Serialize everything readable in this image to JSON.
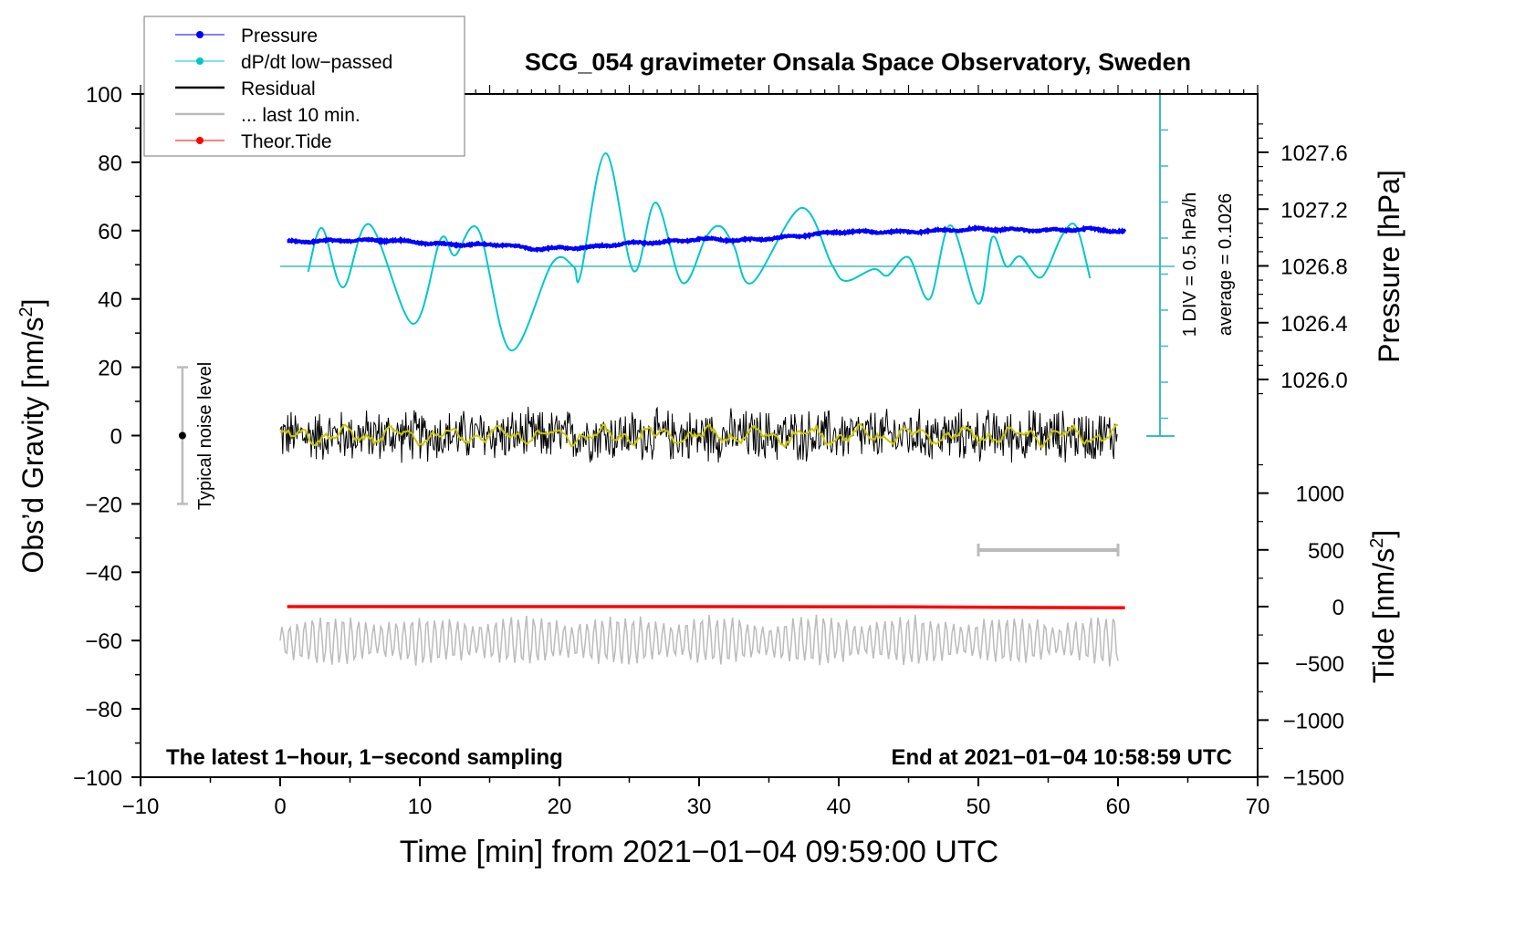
{
  "chart_data": {
    "type": "line",
    "title": "SCG_054 gravimeter Onsala Space Observatory, Sweden",
    "xlabel": "Time [min] from 2021−01−04 09:59:00 UTC",
    "ylabel_left": "Obs’d Gravity [nm/s",
    "ylabel_left_sup": "2",
    "ylabel_left_end": "]",
    "ylabel_right_pressure": "Pressure [hPa]",
    "ylabel_right_tide": "Tide [nm/s",
    "ylabel_right_tide_sup": "2",
    "ylabel_right_tide_end": "]",
    "xlim": [
      -10,
      70
    ],
    "ylim_left": [
      -100,
      100
    ],
    "x_ticks": [
      "−10",
      "0",
      "10",
      "20",
      "30",
      "40",
      "50",
      "60",
      "70"
    ],
    "x_tick_values": [
      -10,
      0,
      10,
      20,
      30,
      40,
      50,
      60,
      70
    ],
    "y_ticks_left": [
      "100",
      "80",
      "60",
      "40",
      "20",
      "0",
      "−20",
      "−40",
      "−60",
      "−80",
      "−100"
    ],
    "y_tick_values_left": [
      100,
      80,
      60,
      40,
      20,
      0,
      -20,
      -40,
      -60,
      -80,
      -100
    ],
    "pressure_ticks": [
      "1027.6",
      "1027.2",
      "1026.8",
      "1026.4",
      "1026.0"
    ],
    "pressure_tick_values": [
      1027.6,
      1027.2,
      1026.8,
      1026.4,
      1026.0
    ],
    "tide_ticks": [
      "1000",
      "500",
      "0",
      "−500",
      "−1000",
      "−1500"
    ],
    "tide_tick_values": [
      1000,
      500,
      0,
      -500,
      -1000,
      -1500
    ],
    "legend": {
      "placement": "top-left",
      "entries": [
        {
          "label": "Pressure",
          "color": "#0000ff"
        },
        {
          "label": "dP/dt low−passed",
          "color": "#00c8c8"
        },
        {
          "label": "Residual",
          "color": "#000000"
        },
        {
          "label": "... last 10 min.",
          "color": "#bbbbbb"
        },
        {
          "label": "Theor.Tide",
          "color": "#ff0000"
        }
      ]
    },
    "annotations": {
      "bottom_left": "The latest 1−hour, 1−second sampling",
      "bottom_right": "End at 2021−01−04 10:58:59 UTC",
      "div_label": "1 DIV = 0.5 hPa/h",
      "average_label": "average = 0.1026",
      "noise_label": "Typical noise level"
    },
    "series": [
      {
        "name": "Pressure",
        "axis": "pressure_hPa",
        "x": [
          0.5,
          5,
          8,
          12,
          16,
          18,
          22,
          25,
          28,
          30,
          33,
          36,
          40,
          45,
          50,
          55,
          58,
          60.5
        ],
        "y": [
          1026.97,
          1026.98,
          1026.98,
          1026.95,
          1026.95,
          1026.92,
          1026.93,
          1026.96,
          1026.97,
          1026.99,
          1026.98,
          1027.0,
          1027.04,
          1027.04,
          1027.06,
          1027.05,
          1027.06,
          1027.04
        ]
      },
      {
        "name": "dP/dt low-passed",
        "axis": "hPa/h (1 DIV = 0.5), zero at left 50",
        "x": [
          2,
          3,
          4.5,
          6.4,
          9.5,
          11.5,
          12.5,
          14.2,
          16.5,
          19.5,
          21,
          21.5,
          23.3,
          25.3,
          26.9,
          28.8,
          30.5,
          31.5,
          32.5,
          33.8,
          37.3,
          39.5,
          40.5,
          42.5,
          43.5,
          45,
          46.5,
          48,
          50,
          51,
          52,
          53,
          54.5,
          56,
          57,
          58
        ],
        "y": [
          -0.075,
          0.525,
          -0.288,
          0.575,
          -0.788,
          0.375,
          0.15,
          0.5,
          -1.15,
          0.05,
          0,
          -0.125,
          1.55,
          -0.063,
          0.875,
          -0.225,
          0.4,
          0.55,
          0.275,
          -0.225,
          0.8,
          0.025,
          -0.2,
          -0.038,
          -0.125,
          0.125,
          -0.45,
          0.563,
          -0.513,
          0.4,
          0,
          0.138,
          -0.15,
          0.425,
          0.55,
          -0.163
        ]
      },
      {
        "name": "Residual",
        "axis": "left",
        "x_range": [
          0,
          60
        ],
        "mean": 0,
        "amplitude": 8
      },
      {
        "name": "... last 10 min.",
        "axis": "left offset -60",
        "x_range": [
          0,
          60
        ],
        "amplitude": 6
      },
      {
        "name": "Theor.Tide",
        "axis": "tide_nm/s2",
        "x": [
          0.5,
          30,
          45,
          55,
          60.5
        ],
        "y": [
          0,
          0,
          -2,
          -8,
          -10
        ]
      }
    ],
    "noise_bar": {
      "x": -7,
      "range": [
        -20,
        20
      ]
    },
    "scale_bar": {
      "x_range": [
        50,
        60
      ],
      "y": -33.5
    }
  }
}
